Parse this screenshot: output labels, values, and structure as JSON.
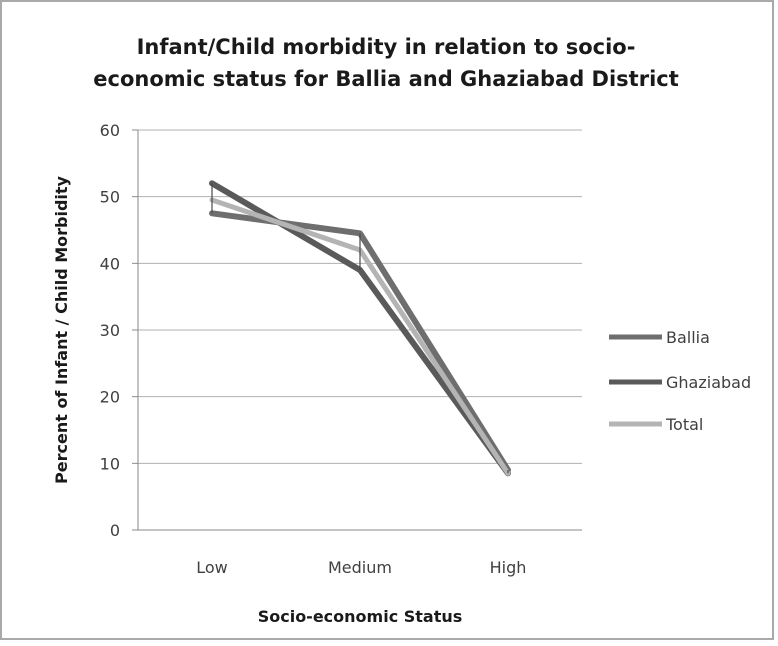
{
  "chart_data": {
    "type": "line",
    "title_lines": [
      "Infant/Child morbidity in relation to socio-",
      "economic status for Ballia and Ghaziabad District"
    ],
    "xlabel": "Socio-economic Status",
    "ylabel": "Percent of Infant / Child Morbidity",
    "categories": [
      "Low",
      "Medium",
      "High"
    ],
    "ylim": [
      0,
      60
    ],
    "yticks": [
      0,
      10,
      20,
      30,
      40,
      50,
      60
    ],
    "grid": true,
    "legend_position": "right",
    "series": [
      {
        "name": "Ballia",
        "values": [
          47.5,
          44.5,
          9
        ],
        "color": "#6e6e6e"
      },
      {
        "name": "Ghaziabad",
        "values": [
          52,
          39,
          8.5
        ],
        "color": "#5a5a5a"
      },
      {
        "name": "Total",
        "values": [
          49.5,
          42,
          8.5
        ],
        "color": "#b4b4b4"
      }
    ]
  }
}
